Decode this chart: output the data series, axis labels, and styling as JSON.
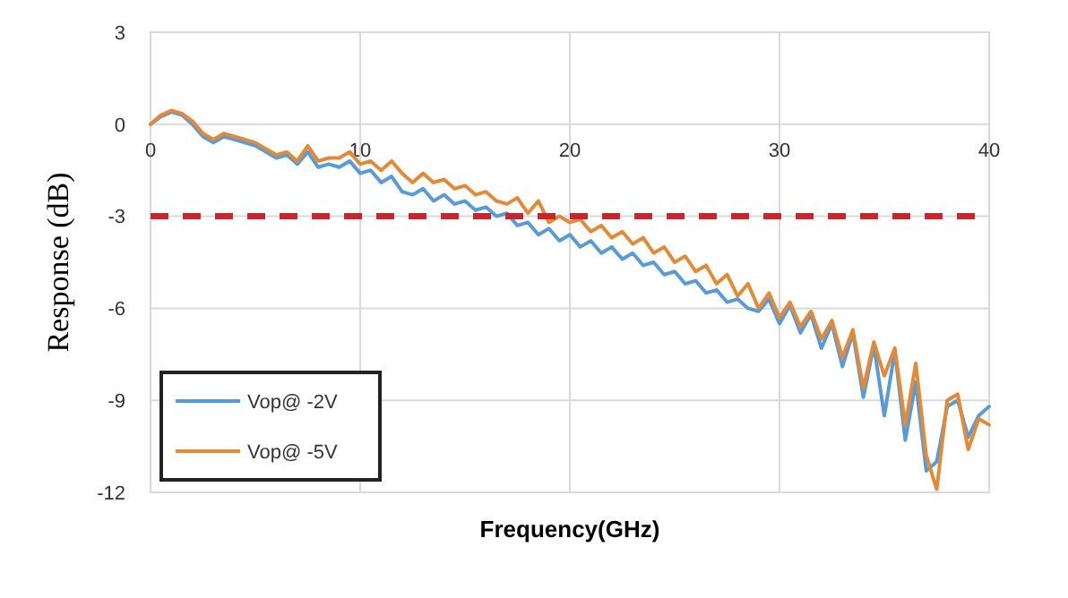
{
  "chart_data": {
    "type": "line",
    "xlabel": "Frequency(GHz)",
    "ylabel": "Response (dB)",
    "xlim": [
      0,
      40
    ],
    "xticks": [
      0,
      10,
      20,
      30,
      40
    ],
    "ylim": [
      -12,
      3
    ],
    "yticks": [
      3,
      0,
      -3,
      -6,
      -9,
      -12
    ],
    "grid": true,
    "legend": "bottom left",
    "line_style": "solid",
    "marker": "none",
    "ref_lines": [
      {
        "axis": "y",
        "value": -3,
        "color": "#c8262e",
        "line_style": "dashed"
      }
    ],
    "series": [
      {
        "name": "Vop@ -2V",
        "color": "#5b9bd5",
        "x": [
          0,
          0.5,
          1,
          1.5,
          2,
          2.5,
          3,
          3.5,
          4,
          4.5,
          5,
          5.5,
          6,
          6.5,
          7,
          7.5,
          8,
          8.5,
          9,
          9.5,
          10,
          10.5,
          11,
          11.5,
          12,
          12.5,
          13,
          13.5,
          14,
          14.5,
          15,
          15.5,
          16,
          16.5,
          17,
          17.5,
          18,
          18.5,
          19,
          19.5,
          20,
          20.5,
          21,
          21.5,
          22,
          22.5,
          23,
          23.5,
          24,
          24.5,
          25,
          25.5,
          26,
          26.5,
          27,
          27.5,
          28,
          28.5,
          29,
          29.5,
          30,
          30.5,
          31,
          31.5,
          32,
          32.5,
          33,
          33.5,
          34,
          34.5,
          35,
          35.5,
          36,
          36.5,
          37,
          37.5,
          38,
          38.5,
          39,
          39.5,
          40
        ],
        "values": [
          0,
          0.25,
          0.4,
          0.3,
          0,
          -0.4,
          -0.6,
          -0.4,
          -0.5,
          -0.6,
          -0.7,
          -0.9,
          -1.1,
          -1,
          -1.3,
          -0.9,
          -1.4,
          -1.3,
          -1.4,
          -1.2,
          -1.6,
          -1.5,
          -1.9,
          -1.7,
          -2.2,
          -2.3,
          -2.1,
          -2.5,
          -2.3,
          -2.6,
          -2.5,
          -2.8,
          -2.7,
          -3,
          -2.9,
          -3.3,
          -3.2,
          -3.6,
          -3.4,
          -3.8,
          -3.6,
          -4,
          -3.8,
          -4.2,
          -4,
          -4.4,
          -4.2,
          -4.6,
          -4.5,
          -4.9,
          -4.8,
          -5.2,
          -5.1,
          -5.5,
          -5.4,
          -5.8,
          -5.7,
          -6,
          -6.1,
          -5.7,
          -6.5,
          -5.9,
          -6.8,
          -6.2,
          -7.3,
          -6.5,
          -7.9,
          -6.8,
          -8.9,
          -7.2,
          -9.5,
          -7.4,
          -10.3,
          -8.4,
          -11.3,
          -11,
          -9.2,
          -9,
          -10.2,
          -9.5,
          -9.2
        ]
      },
      {
        "name": "Vop@ -5V",
        "color": "#e08a3c",
        "x": [
          0,
          0.5,
          1,
          1.5,
          2,
          2.5,
          3,
          3.5,
          4,
          4.5,
          5,
          5.5,
          6,
          6.5,
          7,
          7.5,
          8,
          8.5,
          9,
          9.5,
          10,
          10.5,
          11,
          11.5,
          12,
          12.5,
          13,
          13.5,
          14,
          14.5,
          15,
          15.5,
          16,
          16.5,
          17,
          17.5,
          18,
          18.5,
          19,
          19.5,
          20,
          20.5,
          21,
          21.5,
          22,
          22.5,
          23,
          23.5,
          24,
          24.5,
          25,
          25.5,
          26,
          26.5,
          27,
          27.5,
          28,
          28.5,
          29,
          29.5,
          30,
          30.5,
          31,
          31.5,
          32,
          32.5,
          33,
          33.5,
          34,
          34.5,
          35,
          35.5,
          36,
          36.5,
          37,
          37.5,
          38,
          38.5,
          39,
          39.5,
          40
        ],
        "values": [
          0,
          0.3,
          0.45,
          0.35,
          0.1,
          -0.3,
          -0.5,
          -0.3,
          -0.4,
          -0.5,
          -0.6,
          -0.8,
          -1,
          -0.9,
          -1.2,
          -0.7,
          -1.2,
          -1.1,
          -1.1,
          -0.9,
          -1.3,
          -1.2,
          -1.5,
          -1.2,
          -1.6,
          -1.9,
          -1.6,
          -1.9,
          -1.8,
          -2.1,
          -2,
          -2.3,
          -2.2,
          -2.5,
          -2.6,
          -2.4,
          -2.9,
          -2.5,
          -3.2,
          -3,
          -3.2,
          -3.1,
          -3.5,
          -3.3,
          -3.7,
          -3.5,
          -3.9,
          -3.7,
          -4.2,
          -4,
          -4.5,
          -4.3,
          -4.8,
          -4.6,
          -5.2,
          -4.9,
          -5.6,
          -5.2,
          -6,
          -5.5,
          -6.3,
          -5.8,
          -6.6,
          -6.1,
          -7,
          -6.4,
          -7.6,
          -6.7,
          -8.6,
          -7.1,
          -8.2,
          -7.3,
          -9.8,
          -7.8,
          -10.8,
          -11.9,
          -9,
          -8.8,
          -10.6,
          -9.6,
          -9.8
        ]
      }
    ]
  }
}
